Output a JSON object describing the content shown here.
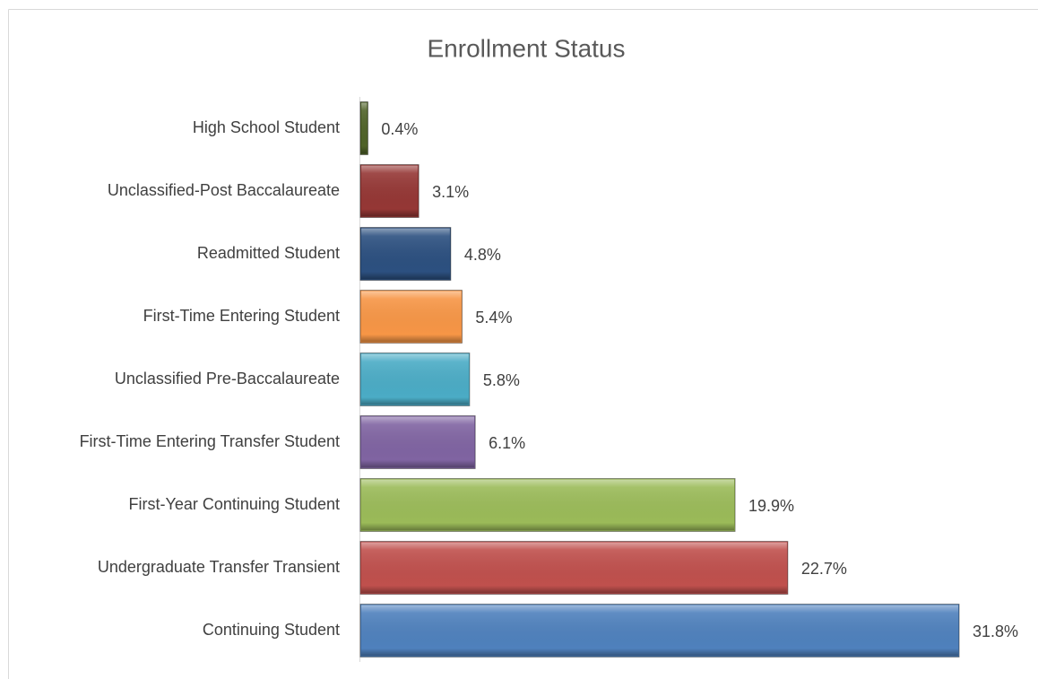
{
  "chart_data": {
    "type": "bar",
    "orientation": "horizontal",
    "title": "Enrollment Status",
    "categories": [
      "High School Student",
      "Unclassified-Post Baccalaureate",
      "Readmitted Student",
      "First-Time Entering Student",
      "Unclassified Pre-Baccalaureate",
      "First-Time Entering Transfer Student",
      "First-Year Continuing Student",
      "Undergraduate Transfer Transient",
      "Continuing Student"
    ],
    "values": [
      0.4,
      3.1,
      4.8,
      5.4,
      5.8,
      6.1,
      19.9,
      22.7,
      31.8
    ],
    "value_labels": [
      "0.4%",
      "3.1%",
      "4.8%",
      "5.4%",
      "5.8%",
      "6.1%",
      "19.9%",
      "22.7%",
      "31.8%"
    ],
    "colors": [
      "#4f6228",
      "#953735",
      "#2c5080",
      "#f79646",
      "#4bacc6",
      "#8064a2",
      "#9bbb59",
      "#c0504d",
      "#4f81bd"
    ]
  }
}
